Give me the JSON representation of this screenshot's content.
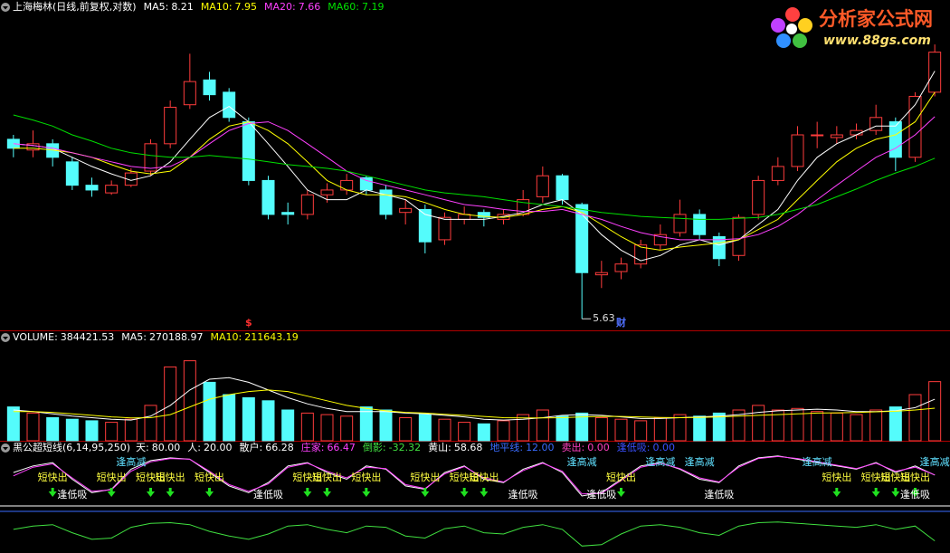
{
  "watermark": {
    "title": "分析家公式网",
    "url": "www.88gs.com"
  },
  "chart_data": [
    {
      "type": "candlestick",
      "title": "上海梅林(日线,前复权,对数)",
      "log_scale": true,
      "ylim": [
        5.57,
        8.9
      ],
      "up_color": "#ff3c3c",
      "down_color": "#54fcfc",
      "open": [
        7.4,
        7.28,
        7.35,
        7.15,
        6.9,
        6.82,
        6.9,
        7.05,
        7.35,
        7.8,
        8.1,
        7.95,
        7.6,
        6.95,
        6.62,
        6.6,
        6.8,
        6.85,
        6.98,
        6.85,
        6.62,
        6.65,
        6.35,
        6.55,
        6.62,
        6.55,
        6.6,
        6.78,
        7.0,
        6.7,
        6.02,
        6.05,
        6.12,
        6.3,
        6.42,
        6.6,
        6.38,
        6.2,
        6.6,
        6.95,
        7.1,
        7.45,
        7.42,
        7.45,
        7.5,
        7.6,
        7.2,
        7.95
      ],
      "high": [
        7.45,
        7.5,
        7.4,
        7.2,
        6.98,
        6.95,
        7.08,
        7.4,
        7.85,
        8.43,
        8.2,
        8.0,
        7.65,
        7.0,
        6.72,
        6.85,
        6.92,
        7.02,
        7.0,
        6.9,
        6.75,
        6.7,
        6.62,
        6.68,
        6.65,
        6.65,
        6.85,
        7.1,
        7.02,
        6.72,
        6.15,
        6.18,
        6.35,
        6.5,
        6.75,
        6.65,
        6.42,
        6.6,
        7.0,
        7.2,
        7.55,
        7.6,
        7.55,
        7.58,
        7.8,
        7.65,
        7.95,
        8.55
      ],
      "low": [
        7.2,
        7.2,
        7.1,
        6.85,
        6.78,
        6.8,
        6.88,
        7.0,
        7.3,
        7.75,
        7.85,
        7.6,
        6.9,
        6.55,
        6.5,
        6.55,
        6.72,
        6.8,
        6.8,
        6.55,
        6.5,
        6.22,
        6.3,
        6.5,
        6.48,
        6.5,
        6.58,
        6.72,
        6.7,
        5.63,
        5.9,
        5.98,
        6.08,
        6.25,
        6.38,
        6.35,
        6.1,
        6.15,
        6.55,
        6.9,
        7.05,
        7.3,
        7.35,
        7.4,
        7.45,
        7.05,
        7.15,
        7.9
      ],
      "close": [
        7.3,
        7.35,
        7.2,
        6.9,
        6.85,
        6.9,
        7.03,
        7.35,
        7.77,
        8.08,
        7.92,
        7.65,
        6.95,
        6.6,
        6.6,
        6.8,
        6.85,
        6.95,
        6.85,
        6.6,
        6.66,
        6.33,
        6.57,
        6.6,
        6.57,
        6.6,
        6.75,
        7.0,
        6.75,
        6.04,
        6.04,
        6.12,
        6.3,
        6.4,
        6.6,
        6.4,
        6.17,
        6.57,
        6.95,
        7.1,
        7.45,
        7.45,
        7.45,
        7.5,
        7.65,
        7.2,
        7.9,
        8.45
      ],
      "series": [
        {
          "name": "MA5:",
          "color": "#ffffff",
          "values": [
            7.35,
            7.33,
            7.3,
            7.2,
            7.1,
            7.02,
            6.95,
            7.0,
            7.15,
            7.4,
            7.65,
            7.78,
            7.6,
            7.35,
            7.1,
            6.85,
            6.75,
            6.75,
            6.85,
            6.8,
            6.75,
            6.6,
            6.55,
            6.55,
            6.55,
            6.58,
            6.62,
            6.7,
            6.75,
            6.6,
            6.4,
            6.25,
            6.15,
            6.2,
            6.3,
            6.35,
            6.3,
            6.35,
            6.5,
            6.65,
            6.95,
            7.2,
            7.35,
            7.45,
            7.55,
            7.55,
            7.8,
            8.21
          ]
        },
        {
          "name": "MA10:",
          "color": "#ffff00",
          "values": [
            7.3,
            7.3,
            7.28,
            7.25,
            7.2,
            7.12,
            7.05,
            7.02,
            7.05,
            7.2,
            7.4,
            7.55,
            7.6,
            7.5,
            7.35,
            7.15,
            6.95,
            6.85,
            6.8,
            6.8,
            6.78,
            6.72,
            6.65,
            6.6,
            6.58,
            6.57,
            6.6,
            6.65,
            6.68,
            6.62,
            6.5,
            6.38,
            6.28,
            6.25,
            6.28,
            6.3,
            6.32,
            6.35,
            6.45,
            6.55,
            6.75,
            6.95,
            7.15,
            7.3,
            7.4,
            7.45,
            7.6,
            7.95
          ]
        },
        {
          "name": "MA20:",
          "color": "#ff40ff",
          "values": [
            7.35,
            7.33,
            7.3,
            7.25,
            7.2,
            7.15,
            7.1,
            7.08,
            7.1,
            7.2,
            7.35,
            7.5,
            7.58,
            7.6,
            7.5,
            7.35,
            7.2,
            7.05,
            6.95,
            6.9,
            6.85,
            6.8,
            6.75,
            6.7,
            6.68,
            6.65,
            6.63,
            6.63,
            6.65,
            6.6,
            6.55,
            6.48,
            6.42,
            6.38,
            6.35,
            6.35,
            6.35,
            6.36,
            6.4,
            6.48,
            6.6,
            6.75,
            6.9,
            7.05,
            7.2,
            7.3,
            7.45,
            7.66
          ]
        },
        {
          "name": "MA60:",
          "color": "#00e000",
          "values": [
            7.68,
            7.62,
            7.55,
            7.45,
            7.38,
            7.3,
            7.25,
            7.22,
            7.2,
            7.2,
            7.22,
            7.2,
            7.18,
            7.15,
            7.12,
            7.1,
            7.08,
            7.05,
            7.0,
            6.95,
            6.9,
            6.85,
            6.82,
            6.8,
            6.78,
            6.75,
            6.72,
            6.7,
            6.68,
            6.65,
            6.62,
            6.6,
            6.58,
            6.57,
            6.56,
            6.55,
            6.55,
            6.56,
            6.57,
            6.6,
            6.65,
            6.7,
            6.78,
            6.86,
            6.95,
            7.03,
            7.1,
            7.19
          ]
        }
      ],
      "annotations": [
        {
          "text": "$",
          "x": 12,
          "color": "#ff3030"
        },
        {
          "text": "财",
          "x": 31,
          "color": "#5070ff"
        }
      ]
    },
    {
      "type": "bar",
      "ylim": [
        0,
        600000
      ],
      "series": [
        {
          "name": "VOLUME:",
          "color": "#ffffff",
          "values": [
            220000,
            180000,
            150000,
            140000,
            130000,
            120000,
            140000,
            230000,
            480000,
            520000,
            380000,
            300000,
            280000,
            260000,
            200000,
            180000,
            170000,
            160000,
            220000,
            200000,
            150000,
            170000,
            140000,
            120000,
            110000,
            130000,
            170000,
            200000,
            160000,
            180000,
            150000,
            140000,
            130000,
            150000,
            170000,
            160000,
            180000,
            200000,
            230000,
            200000,
            210000,
            190000,
            180000,
            170000,
            200000,
            220000,
            300000,
            384421.53
          ]
        },
        {
          "name": "MA5:",
          "color": "#ffffff",
          "values": [
            200000,
            190000,
            175000,
            160000,
            150000,
            140000,
            135000,
            160000,
            230000,
            330000,
            400000,
            410000,
            380000,
            330000,
            280000,
            240000,
            210000,
            190000,
            190000,
            190000,
            180000,
            175000,
            165000,
            155000,
            140000,
            135000,
            140000,
            150000,
            165000,
            170000,
            165000,
            155000,
            145000,
            145000,
            150000,
            155000,
            160000,
            170000,
            185000,
            195000,
            200000,
            205000,
            200000,
            190000,
            190000,
            195000,
            215000,
            270188.97
          ]
        },
        {
          "name": "MA10:",
          "color": "#ffff00",
          "values": [
            190000,
            190000,
            185000,
            175000,
            165000,
            155000,
            148000,
            150000,
            170000,
            220000,
            270000,
            300000,
            320000,
            330000,
            320000,
            290000,
            260000,
            230000,
            210000,
            195000,
            185000,
            180000,
            172000,
            165000,
            158000,
            150000,
            148000,
            148000,
            150000,
            155000,
            158000,
            158000,
            155000,
            152000,
            150000,
            152000,
            155000,
            160000,
            165000,
            170000,
            175000,
            180000,
            182000,
            184000,
            188000,
            192000,
            200000,
            211643.19
          ]
        }
      ]
    },
    {
      "type": "line",
      "title": "黑公超短线(6,14,95,250)",
      "ylim": [
        -45,
        100
      ],
      "series": [
        {
          "name": "天:",
          "color": "#ffffff",
          "value": 80,
          "label": "80.00"
        },
        {
          "name": "人:",
          "color": "#ffffff",
          "value": 20,
          "label": "20.00",
          "line": true
        },
        {
          "name": "散户:",
          "color": "#ffffff",
          "values": [
            70,
            80,
            85,
            60,
            40,
            45,
            75,
            88,
            92,
            90,
            70,
            50,
            40,
            55,
            80,
            85,
            70,
            60,
            80,
            75,
            50,
            45,
            70,
            80,
            60,
            55,
            75,
            85,
            70,
            35,
            40,
            60,
            80,
            85,
            75,
            60,
            55,
            80,
            92,
            95,
            90,
            85,
            80,
            75,
            85,
            70,
            80,
            66.28
          ]
        },
        {
          "name": "庄家:",
          "color": "#ff40ff",
          "values": [
            65,
            78,
            83,
            62,
            42,
            44,
            72,
            86,
            91,
            90,
            72,
            52,
            42,
            53,
            78,
            84,
            72,
            62,
            78,
            76,
            52,
            46,
            68,
            79,
            62,
            56,
            73,
            84,
            72,
            38,
            39,
            58,
            78,
            84,
            76,
            62,
            56,
            78,
            91,
            94,
            91,
            86,
            81,
            76,
            84,
            72,
            78,
            66.47
          ]
        },
        {
          "name": "倒影:",
          "color": "#40e040",
          "values": [
            -15,
            -10,
            -8,
            -20,
            -30,
            -28,
            -12,
            -6,
            -5,
            -8,
            -18,
            -25,
            -30,
            -22,
            -10,
            -8,
            -15,
            -20,
            -10,
            -12,
            -25,
            -28,
            -14,
            -10,
            -20,
            -22,
            -12,
            -8,
            -15,
            -40,
            -38,
            -22,
            -10,
            -8,
            -12,
            -20,
            -24,
            -10,
            -5,
            -4,
            -6,
            -8,
            -10,
            -12,
            -8,
            -15,
            -10,
            -32.32
          ]
        },
        {
          "name": "黄山:",
          "color": "#ffffff",
          "value": 58.68
        },
        {
          "name": "地平线:",
          "color": "#3a6cff",
          "value": 12,
          "label": "12.00",
          "line": true
        },
        {
          "name": "卖出:",
          "color": "#ff40c0",
          "value": 0,
          "label": "0.00"
        },
        {
          "name": "逢低吸:",
          "color": "#3a50ff",
          "value": 0,
          "label": "0.00"
        }
      ],
      "signals": [
        {
          "text": "短快出",
          "color": "#ffff40",
          "x": [
            2,
            5,
            7,
            8,
            10,
            15,
            16,
            18,
            21,
            23,
            24,
            31,
            42,
            44,
            45,
            46
          ]
        },
        {
          "text": "逢低吸",
          "color": "#ffffff",
          "x": [
            3,
            13,
            26,
            30,
            36,
            46
          ]
        },
        {
          "text": "逢高减",
          "color": "#60e0ff",
          "x": [
            6,
            29,
            33,
            35,
            41,
            47
          ]
        }
      ]
    }
  ]
}
